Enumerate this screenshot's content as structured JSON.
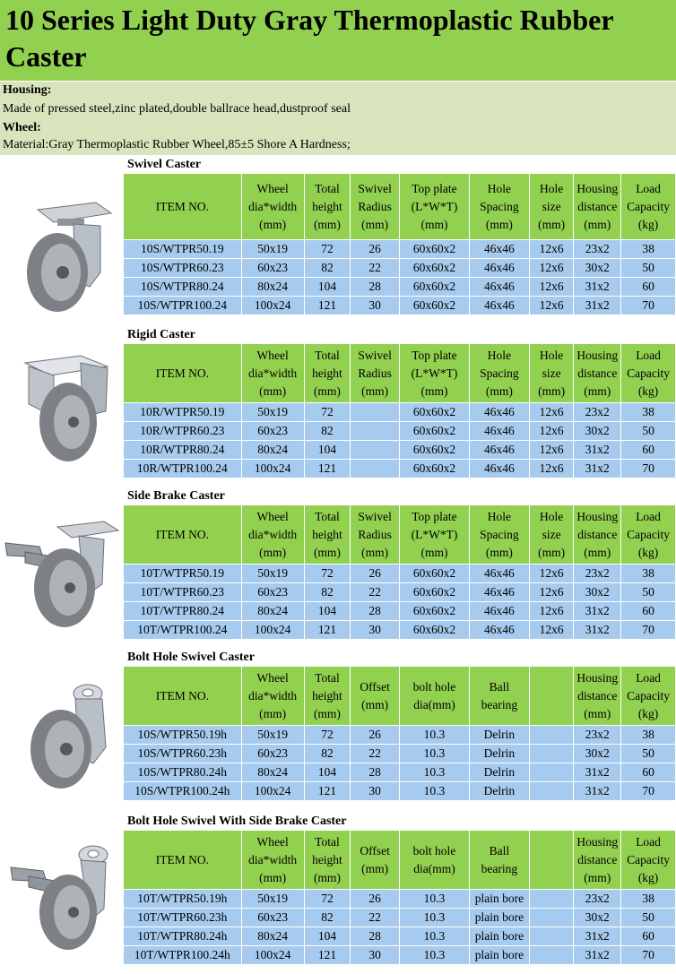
{
  "title": "10 Series Light Duty Gray Thermoplastic Rubber Caster",
  "housing": {
    "label": "Housing:",
    "text": "Made of pressed steel,zinc plated,double ballrace head,dustproof seal"
  },
  "wheel": {
    "label": "Wheel:",
    "text": "Material:Gray Thermoplastic Rubber Wheel,85±5 Shore A Hardness;"
  },
  "colors": {
    "header_green": "#92d050",
    "row_blue": "#a6cbee",
    "info_bg": "#d8e4bc"
  },
  "sections": [
    {
      "title": "Swivel Caster",
      "icon": "swivel-caster-photo",
      "headers": [
        [
          "ITEM NO."
        ],
        [
          "Wheel",
          "dia*width",
          "(mm)"
        ],
        [
          "Total",
          "height",
          "(mm)"
        ],
        [
          "Swivel",
          "Radius",
          "(mm)"
        ],
        [
          "Top plate",
          "(L*W*T)",
          "(mm)"
        ],
        [
          "Hole",
          "Spacing",
          "(mm)"
        ],
        [
          "Hole",
          "size",
          "(mm)"
        ],
        [
          "Housing",
          "distance",
          "(mm)"
        ],
        [
          "Load",
          "Capacity",
          "(kg)"
        ]
      ],
      "rows": [
        [
          "10S/WTPR50.19",
          "50x19",
          "72",
          "26",
          "60x60x2",
          "46x46",
          "12x6",
          "23x2",
          "38"
        ],
        [
          "10S/WTPR60.23",
          "60x23",
          "82",
          "22",
          "60x60x2",
          "46x46",
          "12x6",
          "30x2",
          "50"
        ],
        [
          "10S/WTPR80.24",
          "80x24",
          "104",
          "28",
          "60x60x2",
          "46x46",
          "12x6",
          "31x2",
          "60"
        ],
        [
          "10S/WTPR100.24",
          "100x24",
          "121",
          "30",
          "60x60x2",
          "46x46",
          "12x6",
          "31x2",
          "70"
        ]
      ]
    },
    {
      "title": "Rigid Caster",
      "icon": "rigid-caster-photo",
      "headers": [
        [
          "ITEM NO."
        ],
        [
          "Wheel",
          "dia*width",
          "(mm)"
        ],
        [
          "Total",
          "height",
          "(mm)"
        ],
        [
          "Swivel",
          "Radius",
          "(mm)"
        ],
        [
          "Top plate",
          "(L*W*T)",
          "(mm)"
        ],
        [
          "Hole",
          "Spacing",
          "(mm)"
        ],
        [
          "Hole",
          "size",
          "(mm)"
        ],
        [
          "Housing",
          "distance",
          "(mm)"
        ],
        [
          "Load",
          "Capacity",
          "(kg)"
        ]
      ],
      "rows": [
        [
          "10R/WTPR50.19",
          "50x19",
          "72",
          "",
          "60x60x2",
          "46x46",
          "12x6",
          "23x2",
          "38"
        ],
        [
          "10R/WTPR60.23",
          "60x23",
          "82",
          "",
          "60x60x2",
          "46x46",
          "12x6",
          "30x2",
          "50"
        ],
        [
          "10R/WTPR80.24",
          "80x24",
          "104",
          "",
          "60x60x2",
          "46x46",
          "12x6",
          "31x2",
          "60"
        ],
        [
          "10R/WTPR100.24",
          "100x24",
          "121",
          "",
          "60x60x2",
          "46x46",
          "12x6",
          "31x2",
          "70"
        ]
      ]
    },
    {
      "title": "Side Brake Caster",
      "icon": "side-brake-caster-photo",
      "headers": [
        [
          "ITEM NO."
        ],
        [
          "Wheel",
          "dia*width",
          "(mm)"
        ],
        [
          "Total",
          "height",
          "(mm)"
        ],
        [
          "Swivel",
          "Radius",
          "(mm)"
        ],
        [
          "Top plate",
          "(L*W*T)",
          "(mm)"
        ],
        [
          "Hole",
          "Spacing",
          "(mm)"
        ],
        [
          "Hole",
          "size",
          "(mm)"
        ],
        [
          "Housing",
          "distance",
          "(mm)"
        ],
        [
          "Load",
          "Capacity",
          "(kg)"
        ]
      ],
      "rows": [
        [
          "10T/WTPR50.19",
          "50x19",
          "72",
          "26",
          "60x60x2",
          "46x46",
          "12x6",
          "23x2",
          "38"
        ],
        [
          "10T/WTPR60.23",
          "60x23",
          "82",
          "22",
          "60x60x2",
          "46x46",
          "12x6",
          "30x2",
          "50"
        ],
        [
          "10T/WTPR80.24",
          "80x24",
          "104",
          "28",
          "60x60x2",
          "46x46",
          "12x6",
          "31x2",
          "60"
        ],
        [
          "10T/WTPR100.24",
          "100x24",
          "121",
          "30",
          "60x60x2",
          "46x46",
          "12x6",
          "31x2",
          "70"
        ]
      ]
    },
    {
      "title": "Bolt Hole Swivel Caster",
      "icon": "bolt-hole-swivel-caster-photo",
      "headers": [
        [
          "ITEM NO."
        ],
        [
          "Wheel",
          "dia*width",
          "(mm)"
        ],
        [
          "Total",
          "height",
          "(mm)"
        ],
        [
          "Offset",
          "(mm)"
        ],
        [
          "bolt hole",
          "dia(mm)"
        ],
        [
          "Ball",
          "bearing"
        ],
        [],
        [
          "Housing",
          "distance",
          "(mm)"
        ],
        [
          "Load",
          "Capacity",
          "(kg)"
        ]
      ],
      "rows": [
        [
          "10S/WTPR50.19h",
          "50x19",
          "72",
          "26",
          "10.3",
          "Delrin",
          "",
          "23x2",
          "38"
        ],
        [
          "10S/WTPR60.23h",
          "60x23",
          "82",
          "22",
          "10.3",
          "Delrin",
          "",
          "30x2",
          "50"
        ],
        [
          "10S/WTPR80.24h",
          "80x24",
          "104",
          "28",
          "10.3",
          "Delrin",
          "",
          "31x2",
          "60"
        ],
        [
          "10S/WTPR100.24h",
          "100x24",
          "121",
          "30",
          "10.3",
          "Delrin",
          "",
          "31x2",
          "70"
        ]
      ]
    },
    {
      "title": "Bolt Hole Swivel With Side Brake Caster",
      "icon": "bolt-hole-brake-caster-photo",
      "headers": [
        [
          "ITEM NO."
        ],
        [
          "Wheel",
          "dia*width",
          "(mm)"
        ],
        [
          "Total",
          "height",
          "(mm)"
        ],
        [
          "Offset",
          "(mm)"
        ],
        [
          "bolt hole",
          "dia(mm)"
        ],
        [
          "Ball",
          "bearing"
        ],
        [],
        [
          "Housing",
          "distance",
          "(mm)"
        ],
        [
          "Load",
          "Capacity",
          "(kg)"
        ]
      ],
      "rows": [
        [
          "10T/WTPR50.19h",
          "50x19",
          "72",
          "26",
          "10.3",
          "plain bore",
          "",
          "23x2",
          "38"
        ],
        [
          "10T/WTPR60.23h",
          "60x23",
          "82",
          "22",
          "10.3",
          "plain bore",
          "",
          "30x2",
          "50"
        ],
        [
          "10T/WTPR80.24h",
          "80x24",
          "104",
          "28",
          "10.3",
          "plain bore",
          "",
          "31x2",
          "60"
        ],
        [
          "10T/WTPR100.24h",
          "100x24",
          "121",
          "30",
          "10.3",
          "plain bore",
          "",
          "31x2",
          "70"
        ]
      ]
    }
  ]
}
